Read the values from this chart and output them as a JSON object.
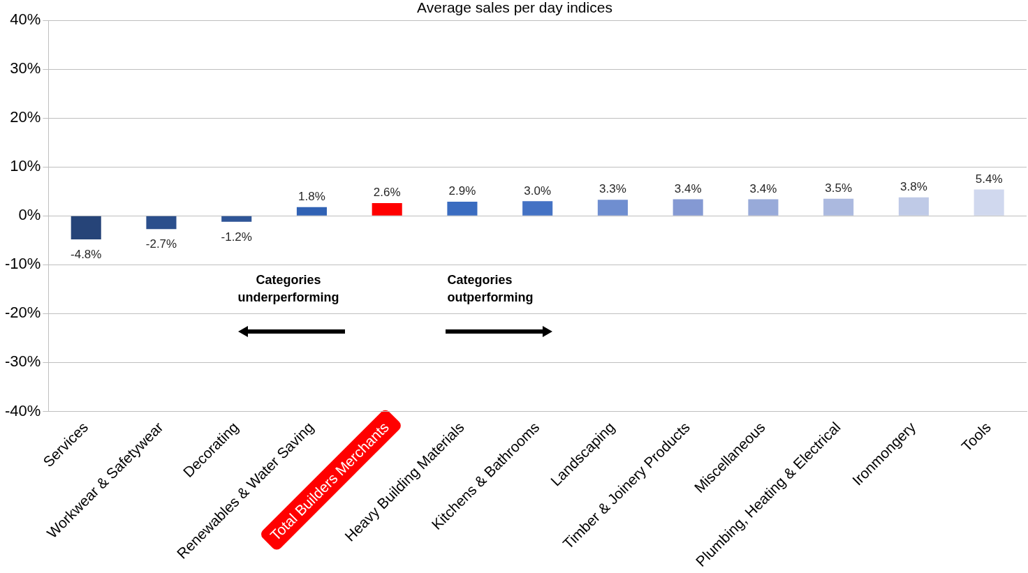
{
  "chart_data": {
    "type": "bar",
    "title": "Average sales per day indices",
    "categories": [
      "Services",
      "Workwear & Safetywear",
      "Decorating",
      "Renewables & Water Saving",
      "Total Builders Merchants",
      "Heavy Building Materials",
      "Kitchens & Bathrooms",
      "Landscaping",
      "Timber & Joinery Products",
      "Miscellaneous",
      "Plumbing, Heating & Electrical",
      "Ironmongery",
      "Tools"
    ],
    "values": [
      -4.8,
      -2.7,
      -1.2,
      1.8,
      2.6,
      2.9,
      3.0,
      3.3,
      3.4,
      3.4,
      3.5,
      3.8,
      5.4
    ],
    "colors": [
      "#264478",
      "#2b4f8c",
      "#2f5597",
      "#3162b4",
      "#ff0000",
      "#3a6cc0",
      "#4472c4",
      "#6f8ed0",
      "#8499d3",
      "#98aad9",
      "#abb9df",
      "#bfcae7",
      "#d0d8ee"
    ],
    "value_labels": [
      "-4.8%",
      "-2.7%",
      "-1.2%",
      "1.8%",
      "2.6%",
      "2.9%",
      "3.0%",
      "3.3%",
      "3.4%",
      "3.4%",
      "3.5%",
      "3.8%",
      "5.4%"
    ],
    "ylim": [
      -40,
      40
    ],
    "yticks": [
      {
        "value": -40,
        "label": "-40%"
      },
      {
        "value": -30,
        "label": "-30%"
      },
      {
        "value": -20,
        "label": "-20%"
      },
      {
        "value": -10,
        "label": "-10%"
      },
      {
        "value": 0,
        "label": "0%"
      },
      {
        "value": 10,
        "label": "10%"
      },
      {
        "value": 20,
        "label": "20%"
      },
      {
        "value": 30,
        "label": "30%"
      },
      {
        "value": 40,
        "label": "40%"
      }
    ],
    "grid": "y",
    "legend": false,
    "annotations": [
      "Categories underperforming",
      "Categories outperforming"
    ]
  }
}
